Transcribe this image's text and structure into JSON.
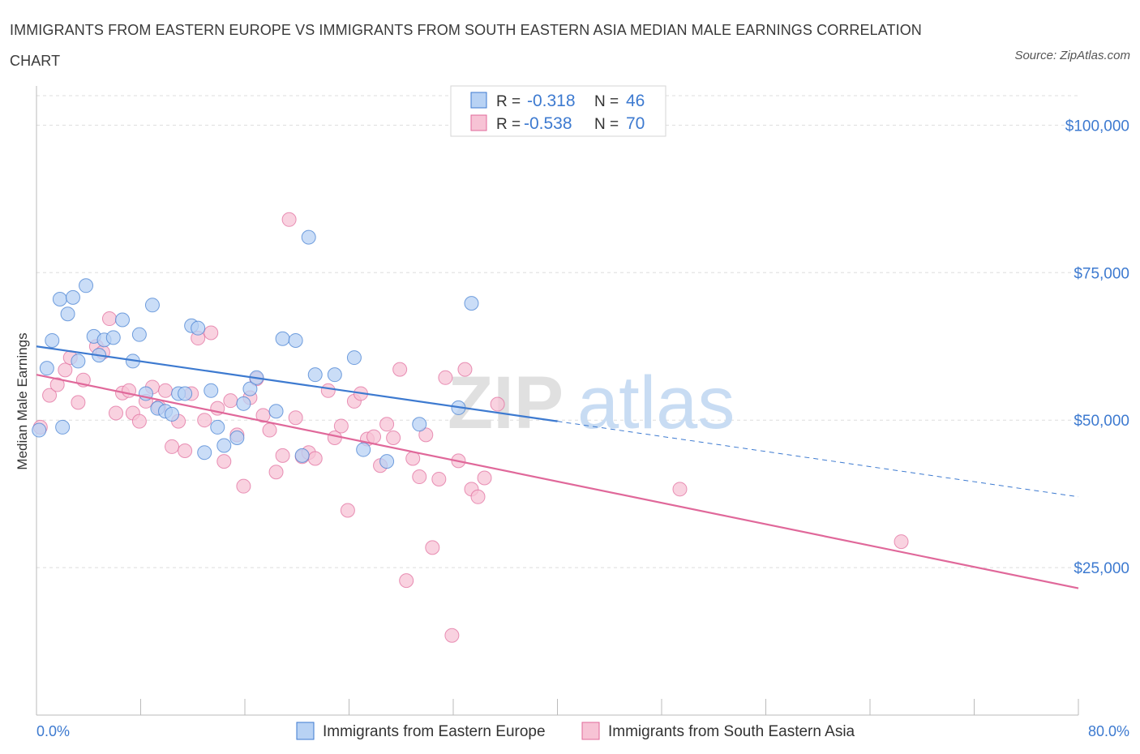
{
  "title": "IMMIGRANTS FROM EASTERN EUROPE VS IMMIGRANTS FROM SOUTH EASTERN ASIA MEDIAN MALE EARNINGS CORRELATION CHART",
  "source": "Source: ZipAtlas.com",
  "watermark": {
    "zip": "ZIP",
    "atlas": "atlas"
  },
  "colors": {
    "blue": "#3d7ad0",
    "blue_fill": "#b8d2f4",
    "pink": "#e0689a",
    "pink_fill": "#f7c3d5",
    "grid": "#dddddd"
  },
  "legend": {
    "rows": [
      {
        "r_label": "R =",
        "r_value": "-0.318",
        "n_label": "N =",
        "n_value": "46"
      },
      {
        "r_label": "R =",
        "r_value": "-0.538",
        "n_label": "N =",
        "n_value": "70"
      }
    ],
    "bottom": [
      "Immigrants from Eastern Europe",
      "Immigrants from South Eastern Asia"
    ]
  },
  "chart_data": {
    "type": "scatter",
    "title": "IMMIGRANTS FROM EASTERN EUROPE VS IMMIGRANTS FROM SOUTH EASTERN ASIA MEDIAN MALE EARNINGS CORRELATION CHART",
    "ylabel": "Median Male Earnings",
    "xlabel": "",
    "xlim": [
      0,
      80
    ],
    "ylim": [
      0,
      105000
    ],
    "x_tick_labels": [
      "0.0%",
      "80.0%"
    ],
    "y_ticks": [
      25000,
      50000,
      75000,
      100000
    ],
    "y_tick_labels": [
      "$25,000",
      "$50,000",
      "$75,000",
      "$100,000"
    ],
    "grid": true,
    "legend_position": "top-center",
    "series": [
      {
        "name": "Immigrants from Eastern Europe",
        "color": "#3d7ad0",
        "trend": {
          "x0": 0,
          "y0": 62500,
          "x1": 40,
          "y1": 49800,
          "dashed_to_x": 80,
          "dashed_to_y": 37000
        },
        "points": [
          [
            0.2,
            48300
          ],
          [
            0.8,
            58800
          ],
          [
            1.2,
            63500
          ],
          [
            1.8,
            70500
          ],
          [
            2.4,
            68000
          ],
          [
            2.8,
            70800
          ],
          [
            3.2,
            60000
          ],
          [
            3.8,
            72800
          ],
          [
            4.4,
            64200
          ],
          [
            4.8,
            61000
          ],
          [
            5.2,
            63600
          ],
          [
            5.9,
            64000
          ],
          [
            6.6,
            67000
          ],
          [
            7.4,
            60000
          ],
          [
            7.9,
            64500
          ],
          [
            8.4,
            54500
          ],
          [
            8.9,
            69500
          ],
          [
            9.3,
            52000
          ],
          [
            9.9,
            51500
          ],
          [
            10.4,
            51000
          ],
          [
            10.9,
            54500
          ],
          [
            11.4,
            54500
          ],
          [
            11.9,
            66000
          ],
          [
            12.4,
            65600
          ],
          [
            12.9,
            44500
          ],
          [
            13.4,
            55000
          ],
          [
            13.9,
            48800
          ],
          [
            14.4,
            45700
          ],
          [
            15.4,
            47000
          ],
          [
            15.9,
            52800
          ],
          [
            16.4,
            55300
          ],
          [
            16.9,
            57200
          ],
          [
            18.4,
            51500
          ],
          [
            18.9,
            63800
          ],
          [
            19.9,
            63500
          ],
          [
            20.4,
            44000
          ],
          [
            20.9,
            81000
          ],
          [
            21.4,
            57700
          ],
          [
            22.9,
            57700
          ],
          [
            24.4,
            60600
          ],
          [
            25.1,
            45000
          ],
          [
            26.9,
            43000
          ],
          [
            29.4,
            49300
          ],
          [
            32.4,
            52100
          ],
          [
            33.4,
            69800
          ],
          [
            2.0,
            48800
          ]
        ]
      },
      {
        "name": "Immigrants from South Eastern Asia",
        "color": "#e0689a",
        "trend": {
          "x0": 0,
          "y0": 57700,
          "x1": 80,
          "y1": 21500
        },
        "points": [
          [
            0.3,
            48800
          ],
          [
            1.0,
            54200
          ],
          [
            1.6,
            56000
          ],
          [
            2.2,
            58500
          ],
          [
            2.6,
            60600
          ],
          [
            3.2,
            53000
          ],
          [
            3.6,
            56800
          ],
          [
            4.6,
            62500
          ],
          [
            5.1,
            61500
          ],
          [
            5.6,
            67200
          ],
          [
            6.1,
            51200
          ],
          [
            6.6,
            54600
          ],
          [
            7.1,
            55000
          ],
          [
            7.4,
            51200
          ],
          [
            7.9,
            49800
          ],
          [
            8.4,
            53200
          ],
          [
            8.9,
            55600
          ],
          [
            9.4,
            52200
          ],
          [
            9.9,
            55000
          ],
          [
            10.4,
            45500
          ],
          [
            10.9,
            49800
          ],
          [
            11.4,
            44800
          ],
          [
            11.9,
            54500
          ],
          [
            12.4,
            63900
          ],
          [
            12.9,
            50000
          ],
          [
            13.4,
            64800
          ],
          [
            13.9,
            52000
          ],
          [
            14.4,
            43000
          ],
          [
            14.9,
            53300
          ],
          [
            15.4,
            47500
          ],
          [
            15.9,
            38800
          ],
          [
            16.4,
            53800
          ],
          [
            16.9,
            57000
          ],
          [
            17.4,
            50800
          ],
          [
            17.9,
            48300
          ],
          [
            18.4,
            41200
          ],
          [
            18.9,
            44000
          ],
          [
            19.4,
            84000
          ],
          [
            19.9,
            50400
          ],
          [
            20.4,
            43800
          ],
          [
            20.9,
            44500
          ],
          [
            21.4,
            43500
          ],
          [
            22.4,
            55000
          ],
          [
            22.9,
            47000
          ],
          [
            23.4,
            49000
          ],
          [
            23.9,
            34700
          ],
          [
            24.4,
            53200
          ],
          [
            24.9,
            54500
          ],
          [
            25.4,
            46800
          ],
          [
            25.9,
            47200
          ],
          [
            26.4,
            42300
          ],
          [
            26.9,
            49300
          ],
          [
            27.4,
            47000
          ],
          [
            27.9,
            58600
          ],
          [
            28.4,
            22800
          ],
          [
            28.9,
            43500
          ],
          [
            29.4,
            40400
          ],
          [
            29.9,
            47500
          ],
          [
            30.4,
            28400
          ],
          [
            30.9,
            40000
          ],
          [
            31.4,
            57200
          ],
          [
            31.9,
            13500
          ],
          [
            32.4,
            43100
          ],
          [
            32.9,
            58600
          ],
          [
            33.4,
            38300
          ],
          [
            33.9,
            37000
          ],
          [
            34.4,
            40200
          ],
          [
            35.4,
            52700
          ],
          [
            49.4,
            38300
          ],
          [
            66.4,
            29400
          ]
        ]
      }
    ]
  }
}
